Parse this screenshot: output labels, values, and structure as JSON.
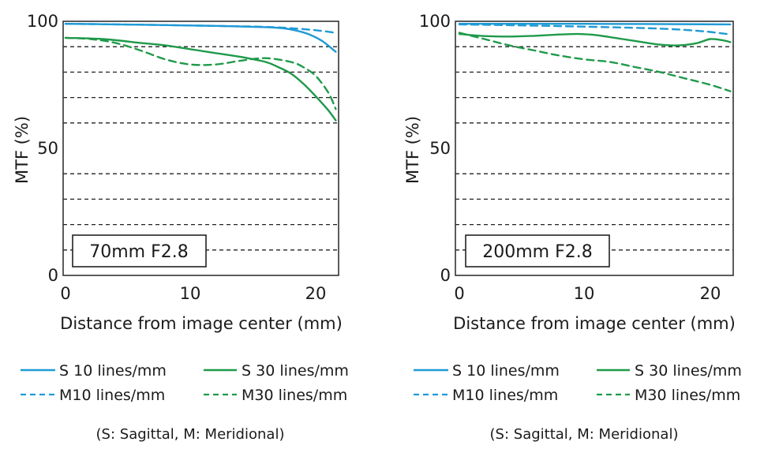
{
  "colors": {
    "blue": "#1f9ad6",
    "green": "#1f9a4a",
    "grid": "#222222",
    "axis": "#333333"
  },
  "legend": {
    "s10": "S 10 lines/mm",
    "s30": "S 30 lines/mm",
    "m10": "M10 lines/mm",
    "m30": "M30 lines/mm",
    "note": "(S: Sagittal, M: Meridional)"
  },
  "chart_data": [
    {
      "type": "line",
      "title": "70mm F2.8",
      "xlabel": "Distance from image center (mm)",
      "ylabel": "MTF (%)",
      "xlim": [
        0,
        21.6
      ],
      "ylim": [
        0,
        100
      ],
      "xticks": [
        0,
        10,
        20
      ],
      "yticks": [
        0,
        50,
        100
      ],
      "grid_y": [
        10,
        20,
        30,
        40,
        60,
        70,
        80,
        90
      ],
      "series": [
        {
          "name": "S 10 lines/mm",
          "color": "blue",
          "dash": false,
          "x": [
            0,
            4,
            8,
            12,
            16,
            17.5,
            18.5,
            19.5,
            20.5,
            21.6
          ],
          "y": [
            99,
            98.8,
            98.5,
            98.2,
            97.7,
            97.2,
            96.3,
            94.8,
            92.3,
            88
          ]
        },
        {
          "name": "M10 lines/mm",
          "color": "blue",
          "dash": true,
          "x": [
            0,
            4,
            8,
            12,
            16,
            18,
            20,
            21.6
          ],
          "y": [
            99,
            98.8,
            98.5,
            98.2,
            97.8,
            97.3,
            96.5,
            95.5
          ]
        },
        {
          "name": "S 30 lines/mm",
          "color": "green",
          "dash": false,
          "x": [
            0,
            3,
            6,
            8,
            10,
            12,
            14,
            16,
            17,
            18,
            19,
            20,
            21,
            21.6
          ],
          "y": [
            93.5,
            93,
            91.5,
            90.5,
            89,
            87.5,
            86,
            84,
            82,
            79.5,
            75.5,
            70.5,
            65,
            61
          ]
        },
        {
          "name": "M30 lines/mm",
          "color": "green",
          "dash": true,
          "x": [
            0,
            2,
            4,
            6,
            8,
            10,
            12,
            14,
            16,
            18,
            19,
            20,
            21,
            21.6
          ],
          "y": [
            93.5,
            93,
            91.5,
            88.5,
            85,
            83,
            83,
            84.5,
            85.5,
            84,
            82,
            78.5,
            72,
            65.5
          ]
        }
      ]
    },
    {
      "type": "line",
      "title": "200mm F2.8",
      "xlabel": "Distance from image center (mm)",
      "ylabel": "MTF (%)",
      "xlim": [
        0,
        21.6
      ],
      "ylim": [
        0,
        100
      ],
      "xticks": [
        0,
        10,
        20
      ],
      "yticks": [
        0,
        50,
        100
      ],
      "grid_y": [
        10,
        20,
        30,
        40,
        60,
        70,
        80,
        90
      ],
      "series": [
        {
          "name": "S 10 lines/mm",
          "color": "blue",
          "dash": false,
          "x": [
            0,
            10,
            21.6
          ],
          "y": [
            99,
            99,
            98.8
          ]
        },
        {
          "name": "M10 lines/mm",
          "color": "blue",
          "dash": true,
          "x": [
            0,
            5,
            10,
            15,
            18,
            20,
            21.6
          ],
          "y": [
            98.8,
            98.4,
            97.9,
            97.3,
            96.6,
            95.8,
            94.8
          ]
        },
        {
          "name": "S 30 lines/mm",
          "color": "green",
          "dash": false,
          "x": [
            0,
            2,
            4,
            6,
            8,
            9.5,
            11,
            13,
            15,
            16,
            17,
            18,
            19,
            20,
            21,
            21.6
          ],
          "y": [
            95,
            94.2,
            94,
            94.3,
            94.8,
            95,
            94.5,
            93,
            91.5,
            90.8,
            90.5,
            90.7,
            91.5,
            93,
            92.5,
            91.8
          ]
        },
        {
          "name": "M30 lines/mm",
          "color": "green",
          "dash": true,
          "x": [
            0,
            2,
            4,
            6,
            8,
            10,
            12,
            14,
            16,
            18,
            20,
            21.6
          ],
          "y": [
            95.5,
            93,
            90.5,
            88.5,
            86.5,
            85,
            84,
            82,
            80,
            77.5,
            75,
            72.5
          ]
        }
      ]
    }
  ]
}
